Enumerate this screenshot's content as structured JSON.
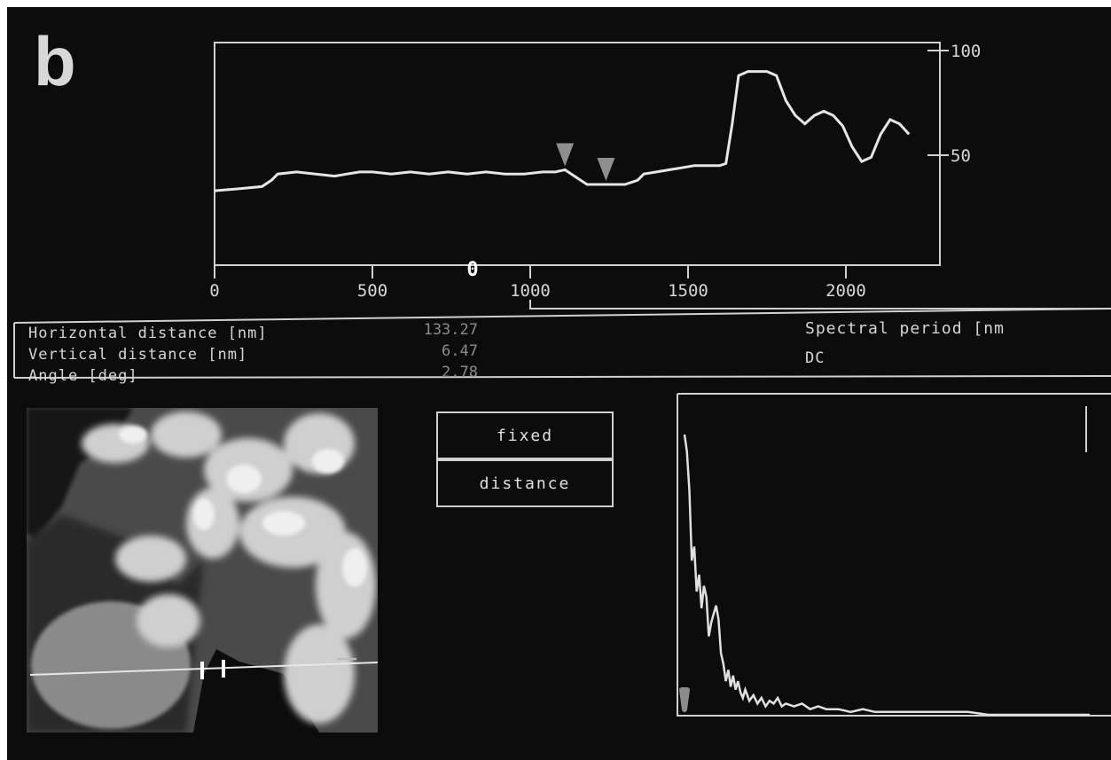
{
  "panel_label": "b",
  "profile_chart": {
    "type": "line",
    "x_ticks": [
      "0",
      "500",
      "1000",
      "1500",
      "2000"
    ],
    "y_ticks": [
      "100",
      "50"
    ],
    "cursor_marker": "0",
    "xlim": [
      0,
      2200
    ],
    "ylim": [
      0,
      100
    ],
    "marker_x": [
      1110,
      1240
    ],
    "series_color": "#e6e6e6",
    "x": [
      0,
      80,
      150,
      180,
      200,
      260,
      320,
      380,
      420,
      460,
      500,
      560,
      620,
      680,
      740,
      800,
      860,
      920,
      980,
      1040,
      1080,
      1110,
      1150,
      1180,
      1240,
      1300,
      1340,
      1360,
      1400,
      1440,
      1480,
      1520,
      1560,
      1600,
      1620,
      1640,
      1660,
      1690,
      1720,
      1750,
      1780,
      1810,
      1840,
      1870,
      1900,
      1930,
      1960,
      1990,
      2020,
      2050,
      2080,
      2110,
      2140,
      2170,
      2200
    ],
    "y": [
      33,
      34,
      35,
      38,
      41,
      42,
      41,
      40,
      41,
      42,
      42,
      41,
      42,
      41,
      42,
      41,
      42,
      41,
      41,
      42,
      42,
      43,
      39,
      36,
      36,
      36,
      38,
      41,
      42,
      43,
      44,
      45,
      45,
      45,
      46,
      65,
      88,
      90,
      90,
      90,
      88,
      76,
      69,
      65,
      69,
      71,
      69,
      64,
      54,
      47,
      49,
      60,
      67,
      65,
      60
    ]
  },
  "measurements": {
    "horizontal_label": "Horizontal distance [nm]",
    "horizontal_value": "133.27",
    "vertical_label": "Vertical distance [nm]",
    "vertical_value": "6.47",
    "angle_label": "Angle [deg]",
    "angle_value": "2.78",
    "spectral_label": "Spectral period [nm",
    "dc_label": "DC"
  },
  "buttons": {
    "fixed_label": "fixed",
    "distance_label": "distance"
  },
  "spectrum_chart": {
    "type": "line",
    "xlim": [
      0,
      100
    ],
    "ylim": [
      0,
      100
    ],
    "series_color": "#e0e0e0",
    "x": [
      0,
      0.6,
      1.2,
      1.8,
      2.4,
      3.0,
      3.6,
      4.2,
      4.8,
      5.4,
      6.0,
      6.6,
      7.2,
      7.8,
      8.4,
      9.0,
      9.6,
      10.2,
      10.8,
      11.4,
      12.0,
      12.6,
      13.2,
      13.8,
      14.4,
      15.0,
      16,
      17,
      18,
      19,
      20,
      21,
      22,
      23,
      24,
      25,
      27,
      29,
      31,
      33,
      35,
      38,
      41,
      44,
      47,
      50,
      55,
      60,
      65,
      70,
      75,
      80,
      85,
      90,
      95,
      100
    ],
    "y": [
      100,
      94,
      80,
      55,
      60,
      44,
      50,
      38,
      46,
      42,
      28,
      33,
      36,
      39,
      34,
      22,
      18,
      12,
      16,
      10,
      14,
      9,
      12,
      8,
      6,
      9,
      5,
      7,
      4,
      6,
      3,
      5,
      4,
      6,
      3,
      4,
      3,
      4,
      2,
      3,
      2,
      2,
      1,
      2,
      1,
      1,
      1,
      1,
      1,
      1,
      0,
      0,
      0,
      0,
      0,
      0
    ]
  }
}
